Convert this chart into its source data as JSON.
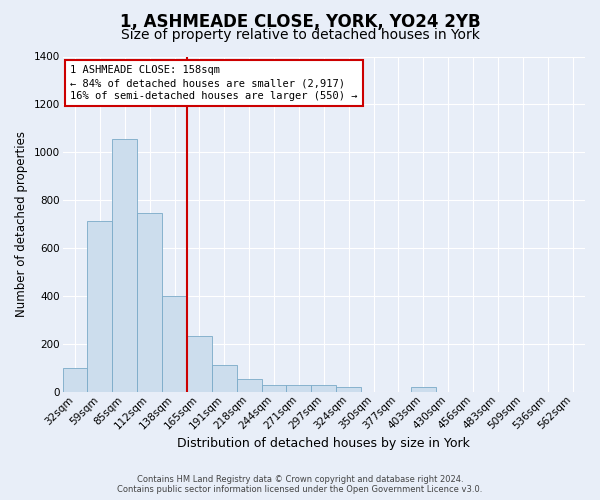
{
  "title": "1, ASHMEADE CLOSE, YORK, YO24 2YB",
  "subtitle": "Size of property relative to detached houses in York",
  "xlabel": "Distribution of detached houses by size in York",
  "ylabel": "Number of detached properties",
  "footnote1": "Contains HM Land Registry data © Crown copyright and database right 2024.",
  "footnote2": "Contains public sector information licensed under the Open Government Licence v3.0.",
  "bar_labels": [
    "32sqm",
    "59sqm",
    "85sqm",
    "112sqm",
    "138sqm",
    "165sqm",
    "191sqm",
    "218sqm",
    "244sqm",
    "271sqm",
    "297sqm",
    "324sqm",
    "350sqm",
    "377sqm",
    "403sqm",
    "430sqm",
    "456sqm",
    "483sqm",
    "509sqm",
    "536sqm",
    "562sqm"
  ],
  "bar_values": [
    100,
    715,
    1055,
    745,
    400,
    235,
    110,
    55,
    30,
    30,
    30,
    20,
    0,
    0,
    20,
    0,
    0,
    0,
    0,
    0,
    0
  ],
  "bar_color": "#ccdded",
  "bar_edge_color": "#7aaac8",
  "vline_x_index": 4,
  "vline_color": "#cc0000",
  "annotation_box_text": "1 ASHMEADE CLOSE: 158sqm\n← 84% of detached houses are smaller (2,917)\n16% of semi-detached houses are larger (550) →",
  "ylim": [
    0,
    1400
  ],
  "yticks": [
    0,
    200,
    400,
    600,
    800,
    1000,
    1200,
    1400
  ],
  "background_color": "#e8eef8",
  "plot_bg_color": "#e8eef8",
  "grid_color": "#ffffff",
  "title_fontsize": 12,
  "subtitle_fontsize": 10,
  "tick_fontsize": 7.5,
  "ylabel_fontsize": 8.5,
  "xlabel_fontsize": 9
}
